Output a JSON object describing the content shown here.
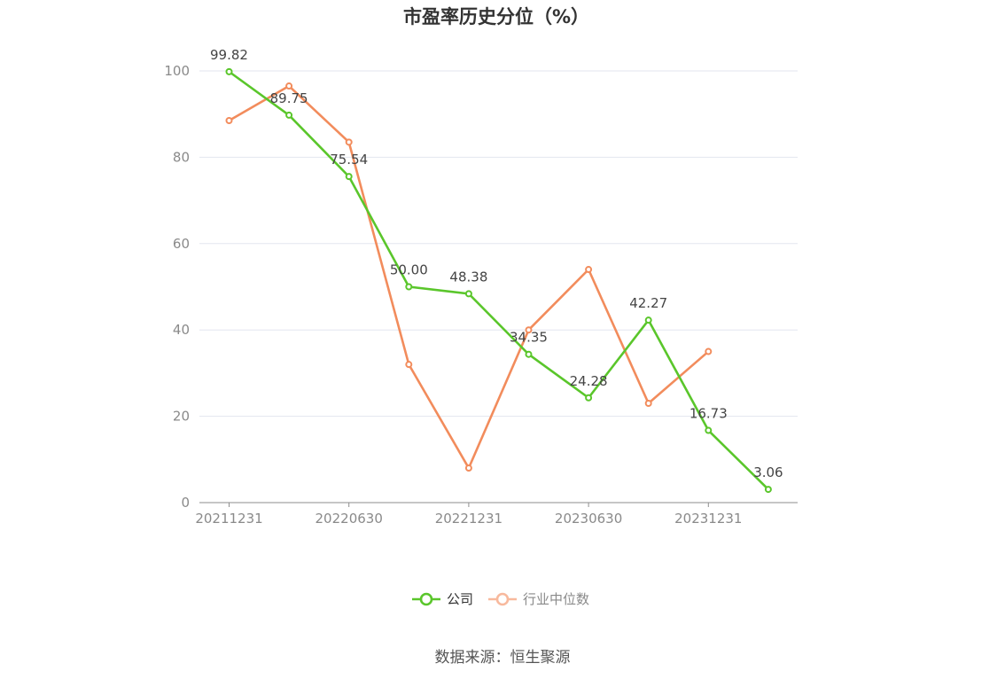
{
  "chart_data": {
    "type": "line",
    "title": "市盈率历史分位（%）",
    "x": [
      "20211231",
      "20220331",
      "20220630",
      "20220930",
      "20221231",
      "20230331",
      "20230630",
      "20230930",
      "20231231",
      "20240331"
    ],
    "x_tick_labels": [
      "20211231",
      "20220630",
      "20221231",
      "20230630",
      "20231231"
    ],
    "y_ticks": [
      "0",
      "20",
      "40",
      "60",
      "80",
      "100"
    ],
    "ylim": [
      0,
      100
    ],
    "grid": true,
    "legend_position": "bottom-center",
    "series": [
      {
        "name": "公司",
        "color": "#5ac62b",
        "values": [
          99.82,
          89.75,
          75.54,
          50.0,
          48.38,
          34.35,
          24.28,
          42.27,
          16.73,
          3.06
        ],
        "labels": [
          "99.82",
          "89.75",
          "75.54",
          "50.00",
          "48.38",
          "34.35",
          "24.28",
          "42.27",
          "16.73",
          "3.06"
        ]
      },
      {
        "name": "行业中位数",
        "color": "#f28c5c",
        "legend_color": "#f8b99d",
        "values": [
          88.5,
          96.5,
          83.5,
          32,
          8,
          40,
          54,
          23,
          35,
          null
        ]
      }
    ]
  },
  "source_text": "数据来源：恒生聚源"
}
